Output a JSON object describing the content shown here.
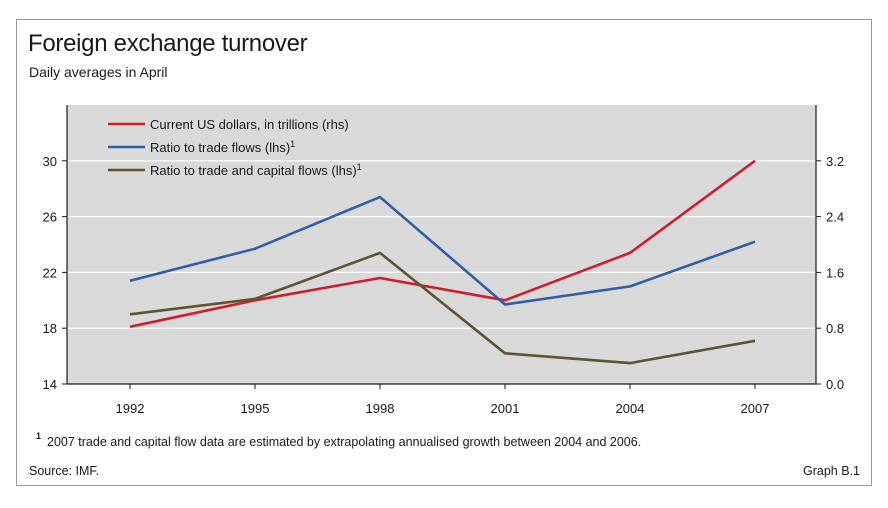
{
  "figure": {
    "title": "Foreign exchange turnover",
    "subtitle": "Daily averages in April",
    "footnote_marker": "1",
    "footnote_text": "2007 trade and capital flow data are estimated by extrapolating annualised growth between 2004 and 2006.",
    "source": "Source: IMF.",
    "graph_id": "Graph B.1"
  },
  "colors": {
    "plot_background": "#d9d9d9",
    "gridline": "#ffffff",
    "axis": "#1a1a1a"
  },
  "chart_data": {
    "type": "line",
    "title": "Foreign exchange turnover",
    "subtitle": "Daily averages in April",
    "categories": [
      "1992",
      "1995",
      "1998",
      "2001",
      "2004",
      "2007"
    ],
    "y_left": {
      "ticks": [
        "14",
        "18",
        "22",
        "26",
        "30"
      ],
      "lim": [
        14,
        34
      ]
    },
    "y_right": {
      "ticks": [
        "0.0",
        "0.8",
        "1.6",
        "2.4",
        "3.2"
      ],
      "lim": [
        0,
        4
      ]
    },
    "grid": true,
    "legend_position": "top-left",
    "series": [
      {
        "name": "Current US dollars, in trillions (rhs)",
        "axis": "right",
        "color": "#cc1f2e",
        "values": [
          0.82,
          1.2,
          1.52,
          1.2,
          1.88,
          3.2
        ]
      },
      {
        "name": "Ratio to trade flows (lhs)",
        "superscript": "1",
        "axis": "left",
        "color": "#2f5fa8",
        "values": [
          21.4,
          23.7,
          27.4,
          19.7,
          21.0,
          24.2
        ]
      },
      {
        "name": "Ratio to trade and capital flows (lhs)",
        "superscript": "1",
        "axis": "left",
        "color": "#5c5630",
        "values": [
          19.0,
          20.1,
          23.4,
          16.2,
          15.5,
          17.1
        ]
      }
    ]
  }
}
